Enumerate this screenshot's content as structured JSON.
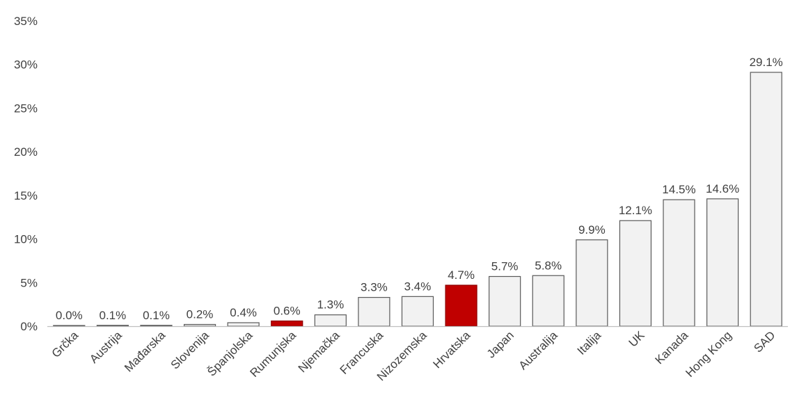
{
  "chart_data": {
    "type": "bar",
    "title": "",
    "xlabel": "",
    "ylabel": "",
    "ylim": [
      0,
      35
    ],
    "yticks": [
      0,
      5,
      10,
      15,
      20,
      25,
      30,
      35
    ],
    "ytick_suffix": "%",
    "grid": false,
    "categories": [
      "Grčka",
      "Austrija",
      "Mađarska",
      "Slovenija",
      "Španjolska",
      "Rumunjska",
      "Njemačka",
      "Francuska",
      "Nizozemska",
      "Hrvatska",
      "Japan",
      "Australija",
      "Italija",
      "UK",
      "Kanada",
      "Hong Kong",
      "SAD"
    ],
    "values": [
      0.0,
      0.1,
      0.1,
      0.2,
      0.4,
      0.6,
      1.3,
      3.3,
      3.4,
      4.7,
      5.7,
      5.8,
      9.9,
      12.1,
      14.5,
      14.6,
      29.1
    ],
    "value_labels": [
      "0.0%",
      "0.1%",
      "0.1%",
      "0.2%",
      "0.4%",
      "0.6%",
      "1.3%",
      "3.3%",
      "3.4%",
      "4.7%",
      "5.7%",
      "5.8%",
      "9.9%",
      "12.1%",
      "14.5%",
      "14.6%",
      "29.1%"
    ],
    "highlighted": [
      "Rumunjska",
      "Hrvatska"
    ],
    "colors": {
      "bar_fill": "#f2f2f2",
      "bar_stroke": "#595959",
      "highlight_fill": "#c00000",
      "highlight_stroke": "#8c0000",
      "axis": "#bfbfbf"
    }
  }
}
